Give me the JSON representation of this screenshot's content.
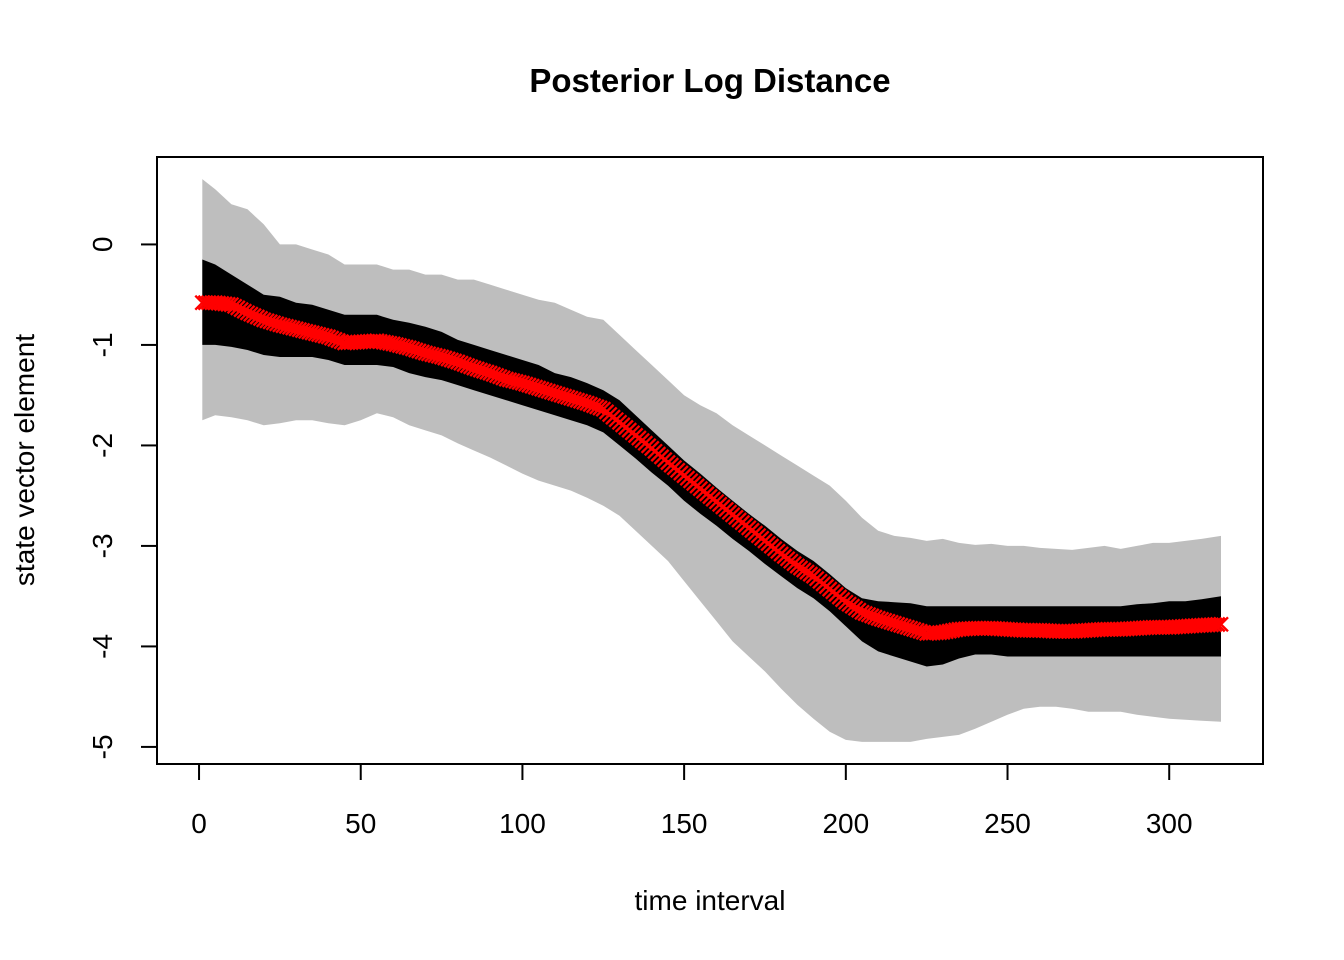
{
  "chart_data": {
    "type": "line",
    "title": "Posterior Log Distance",
    "xlabel": "time interval",
    "ylabel": "state vector element",
    "xlim": [
      -13,
      329
    ],
    "ylim": [
      -5.17,
      0.87
    ],
    "xticks": [
      0,
      50,
      100,
      150,
      200,
      250,
      300
    ],
    "xtick_labels": [
      "0",
      "50",
      "100",
      "150",
      "200",
      "250",
      "300"
    ],
    "yticks": [
      0,
      -1,
      -2,
      -3,
      -4,
      -5
    ],
    "ytick_labels": [
      "0",
      "-1",
      "-2",
      "-3",
      "-4",
      "-5"
    ],
    "grid": false,
    "legend": "none",
    "colors": {
      "outer_band": "#bebebe",
      "inner_band": "#000000",
      "median_marker": "#ff0000"
    },
    "marker": "x",
    "x": [
      1,
      5,
      10,
      15,
      20,
      25,
      30,
      35,
      40,
      45,
      50,
      55,
      60,
      65,
      70,
      75,
      80,
      85,
      90,
      95,
      100,
      105,
      110,
      115,
      120,
      125,
      130,
      135,
      140,
      145,
      150,
      155,
      160,
      165,
      170,
      175,
      180,
      185,
      190,
      195,
      200,
      205,
      210,
      215,
      220,
      225,
      230,
      235,
      240,
      245,
      250,
      255,
      260,
      265,
      270,
      275,
      280,
      285,
      290,
      295,
      300,
      305,
      310,
      316
    ],
    "series": [
      {
        "name": "",
        "role": "outer_upper",
        "values": [
          0.65,
          0.55,
          0.4,
          0.35,
          0.2,
          0.0,
          0.0,
          -0.05,
          -0.1,
          -0.2,
          -0.2,
          -0.2,
          -0.25,
          -0.25,
          -0.3,
          -0.3,
          -0.35,
          -0.35,
          -0.4,
          -0.45,
          -0.5,
          -0.55,
          -0.58,
          -0.65,
          -0.72,
          -0.75,
          -0.9,
          -1.05,
          -1.2,
          -1.35,
          -1.5,
          -1.6,
          -1.68,
          -1.8,
          -1.9,
          -2.0,
          -2.1,
          -2.2,
          -2.3,
          -2.4,
          -2.55,
          -2.72,
          -2.85,
          -2.9,
          -2.92,
          -2.95,
          -2.93,
          -2.97,
          -2.99,
          -2.98,
          -3.0,
          -3.0,
          -3.02,
          -3.03,
          -3.04,
          -3.02,
          -3.0,
          -3.03,
          -3.0,
          -2.97,
          -2.97,
          -2.95,
          -2.93,
          -2.9
        ]
      },
      {
        "name": "",
        "role": "inner_upper",
        "values": [
          -0.15,
          -0.2,
          -0.3,
          -0.4,
          -0.5,
          -0.52,
          -0.58,
          -0.6,
          -0.65,
          -0.7,
          -0.7,
          -0.7,
          -0.75,
          -0.78,
          -0.82,
          -0.87,
          -0.95,
          -1.0,
          -1.05,
          -1.1,
          -1.15,
          -1.2,
          -1.28,
          -1.32,
          -1.38,
          -1.45,
          -1.55,
          -1.7,
          -1.85,
          -2.0,
          -2.15,
          -2.28,
          -2.42,
          -2.55,
          -2.68,
          -2.8,
          -2.93,
          -3.05,
          -3.15,
          -3.28,
          -3.42,
          -3.52,
          -3.55,
          -3.56,
          -3.57,
          -3.6,
          -3.6,
          -3.6,
          -3.6,
          -3.6,
          -3.6,
          -3.6,
          -3.6,
          -3.6,
          -3.6,
          -3.6,
          -3.6,
          -3.6,
          -3.58,
          -3.57,
          -3.55,
          -3.55,
          -3.53,
          -3.5
        ]
      },
      {
        "name": "",
        "role": "median",
        "values": [
          -0.58,
          -0.58,
          -0.6,
          -0.68,
          -0.75,
          -0.8,
          -0.84,
          -0.88,
          -0.92,
          -0.98,
          -0.97,
          -0.96,
          -0.99,
          -1.03,
          -1.08,
          -1.12,
          -1.17,
          -1.23,
          -1.28,
          -1.34,
          -1.38,
          -1.43,
          -1.48,
          -1.53,
          -1.58,
          -1.64,
          -1.77,
          -1.9,
          -2.03,
          -2.17,
          -2.3,
          -2.43,
          -2.56,
          -2.69,
          -2.82,
          -2.95,
          -3.08,
          -3.2,
          -3.3,
          -3.43,
          -3.56,
          -3.66,
          -3.72,
          -3.77,
          -3.82,
          -3.87,
          -3.86,
          -3.83,
          -3.82,
          -3.82,
          -3.83,
          -3.84,
          -3.84,
          -3.85,
          -3.85,
          -3.84,
          -3.83,
          -3.83,
          -3.82,
          -3.81,
          -3.81,
          -3.8,
          -3.79,
          -3.78
        ]
      },
      {
        "name": "",
        "role": "inner_lower",
        "values": [
          -1.0,
          -1.0,
          -1.02,
          -1.05,
          -1.1,
          -1.12,
          -1.12,
          -1.12,
          -1.15,
          -1.2,
          -1.2,
          -1.2,
          -1.22,
          -1.28,
          -1.32,
          -1.35,
          -1.4,
          -1.45,
          -1.5,
          -1.55,
          -1.6,
          -1.65,
          -1.7,
          -1.75,
          -1.8,
          -1.87,
          -2.0,
          -2.13,
          -2.27,
          -2.4,
          -2.55,
          -2.68,
          -2.8,
          -2.93,
          -3.05,
          -3.18,
          -3.3,
          -3.42,
          -3.52,
          -3.65,
          -3.8,
          -3.95,
          -4.05,
          -4.1,
          -4.15,
          -4.2,
          -4.18,
          -4.12,
          -4.08,
          -4.08,
          -4.1,
          -4.1,
          -4.1,
          -4.1,
          -4.1,
          -4.1,
          -4.1,
          -4.1,
          -4.1,
          -4.1,
          -4.1,
          -4.1,
          -4.1,
          -4.1
        ]
      },
      {
        "name": "",
        "role": "outer_lower",
        "values": [
          -1.75,
          -1.7,
          -1.72,
          -1.75,
          -1.8,
          -1.78,
          -1.75,
          -1.75,
          -1.78,
          -1.8,
          -1.75,
          -1.68,
          -1.72,
          -1.8,
          -1.85,
          -1.9,
          -1.98,
          -2.05,
          -2.12,
          -2.2,
          -2.28,
          -2.35,
          -2.4,
          -2.45,
          -2.52,
          -2.6,
          -2.7,
          -2.85,
          -3.0,
          -3.15,
          -3.35,
          -3.55,
          -3.75,
          -3.95,
          -4.1,
          -4.25,
          -4.42,
          -4.58,
          -4.72,
          -4.85,
          -4.93,
          -4.95,
          -4.95,
          -4.95,
          -4.95,
          -4.92,
          -4.9,
          -4.88,
          -4.82,
          -4.75,
          -4.68,
          -4.62,
          -4.6,
          -4.6,
          -4.62,
          -4.65,
          -4.65,
          -4.65,
          -4.68,
          -4.7,
          -4.72,
          -4.73,
          -4.74,
          -4.75
        ]
      }
    ]
  }
}
